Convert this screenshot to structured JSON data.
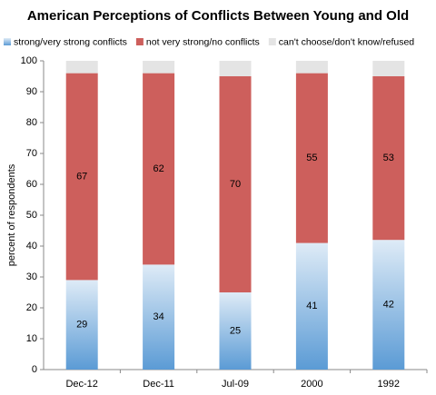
{
  "chart_data": {
    "type": "stacked_bar",
    "title": "American Perceptions of Conflicts Between Young and Old",
    "y_label": "percent of respondents",
    "categories": [
      "Dec-12",
      "Dec-11",
      "Jul-09",
      "2000",
      "1992"
    ],
    "series": [
      {
        "name": "strong/very strong conflicts",
        "color": "#5b9bd5",
        "gradient": true,
        "values": [
          29,
          34,
          25,
          41,
          42
        ]
      },
      {
        "name": "not very strong/no conflicts",
        "color": "#cd5f5c",
        "values": [
          67,
          62,
          70,
          55,
          53
        ]
      },
      {
        "name": "can't choose/don't know/refused",
        "color": "#e4e4e4",
        "values": [
          4,
          4,
          5,
          4,
          5
        ]
      }
    ],
    "show_labels": [
      true,
      true,
      false
    ],
    "ylim": [
      0,
      100
    ],
    "yticks": [
      0,
      10,
      20,
      30,
      40,
      50,
      60,
      70,
      80,
      90,
      100
    ],
    "grid": false,
    "legend": "top"
  }
}
